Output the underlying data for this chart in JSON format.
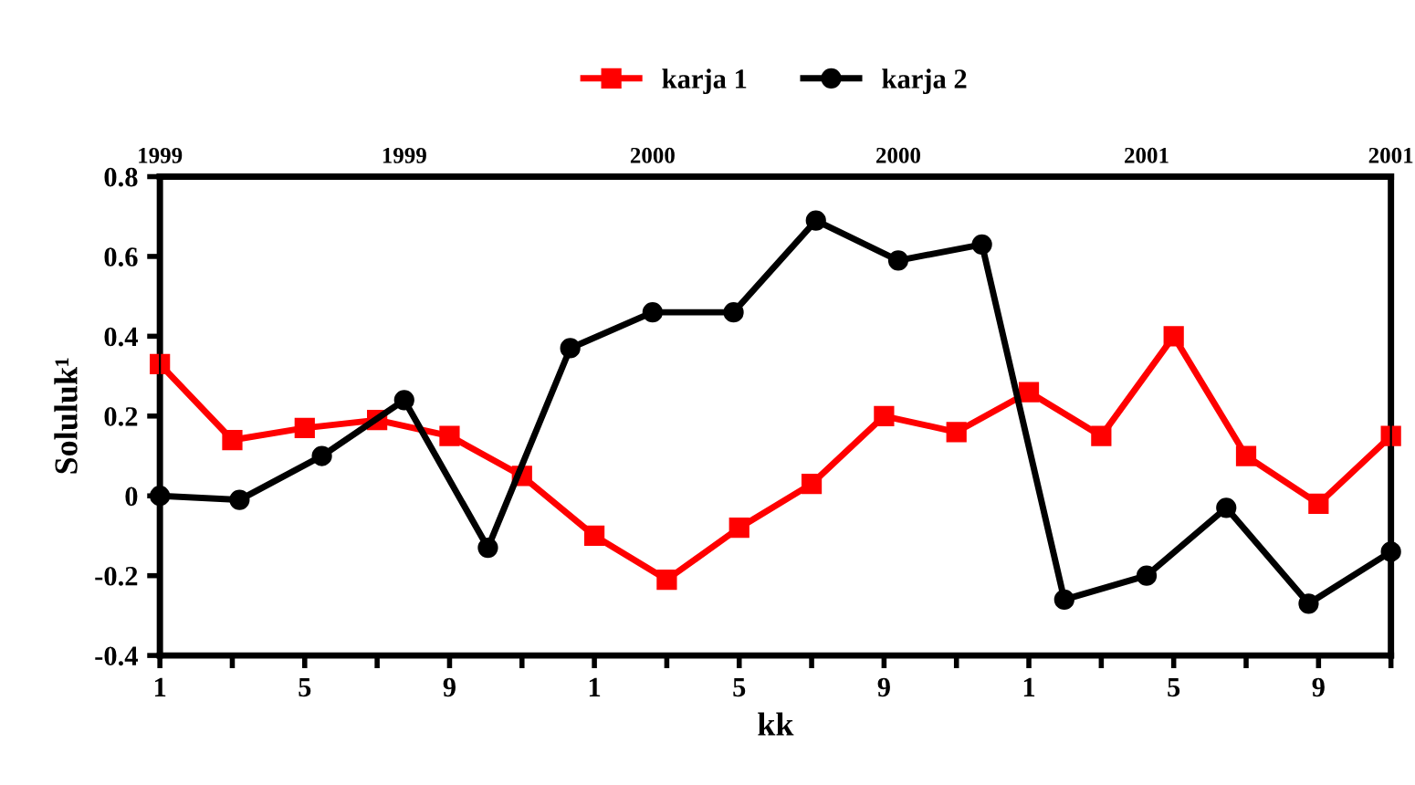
{
  "chart_data": {
    "type": "line",
    "xlabel": "kk",
    "ylabel": "Soluluk¹",
    "categories": [
      "1",
      null,
      "5",
      null,
      "9",
      null,
      "1",
      null,
      "5",
      null,
      "9",
      null,
      "1",
      null,
      "5",
      null,
      "9",
      null
    ],
    "ylim": [
      -0.4,
      0.8
    ],
    "yticks": [
      -0.4,
      -0.2,
      0,
      0.2,
      0.4,
      0.6,
      0.8
    ],
    "x2lim": [
      "1999-01",
      "2001-07"
    ],
    "x2ticks": [
      {
        "value": "1999-01",
        "label": "1999"
      },
      {
        "value": "1999-07",
        "label": "1999"
      },
      {
        "value": "2000-01",
        "label": "2000"
      },
      {
        "value": "2000-07",
        "label": "2000"
      },
      {
        "value": "2001-01",
        "label": "2001"
      },
      {
        "value": "2001-07",
        "label": "2001"
      }
    ],
    "legend": "top",
    "grid": false,
    "line_style": "solid",
    "series": [
      {
        "name": "karja 1",
        "color": "#ff0000",
        "marker": "square",
        "values": [
          0.33,
          0.14,
          0.17,
          0.19,
          0.15,
          0.05,
          -0.1,
          -0.21,
          -0.08,
          0.03,
          0.2,
          0.16,
          0.26,
          0.15,
          0.4,
          0.1,
          -0.02,
          0.15
        ]
      },
      {
        "name": "karja 2",
        "color": "#000000",
        "marker": "circle",
        "axis": "x2",
        "x": [
          "1999-01",
          "1999-03",
          "1999-05",
          "1999-07",
          "1999-09",
          "1999-11",
          "2000-01",
          "2000-03",
          "2000-05",
          "2000-07",
          "2000-09",
          "2000-11",
          "2001-01",
          "2001-03",
          "2001-05",
          "2001-07"
        ],
        "values": [
          0.0,
          -0.01,
          0.1,
          0.24,
          -0.13,
          0.37,
          0.46,
          0.46,
          0.69,
          0.59,
          0.63,
          -0.26,
          -0.2,
          -0.03,
          -0.27,
          -0.14
        ]
      }
    ]
  }
}
